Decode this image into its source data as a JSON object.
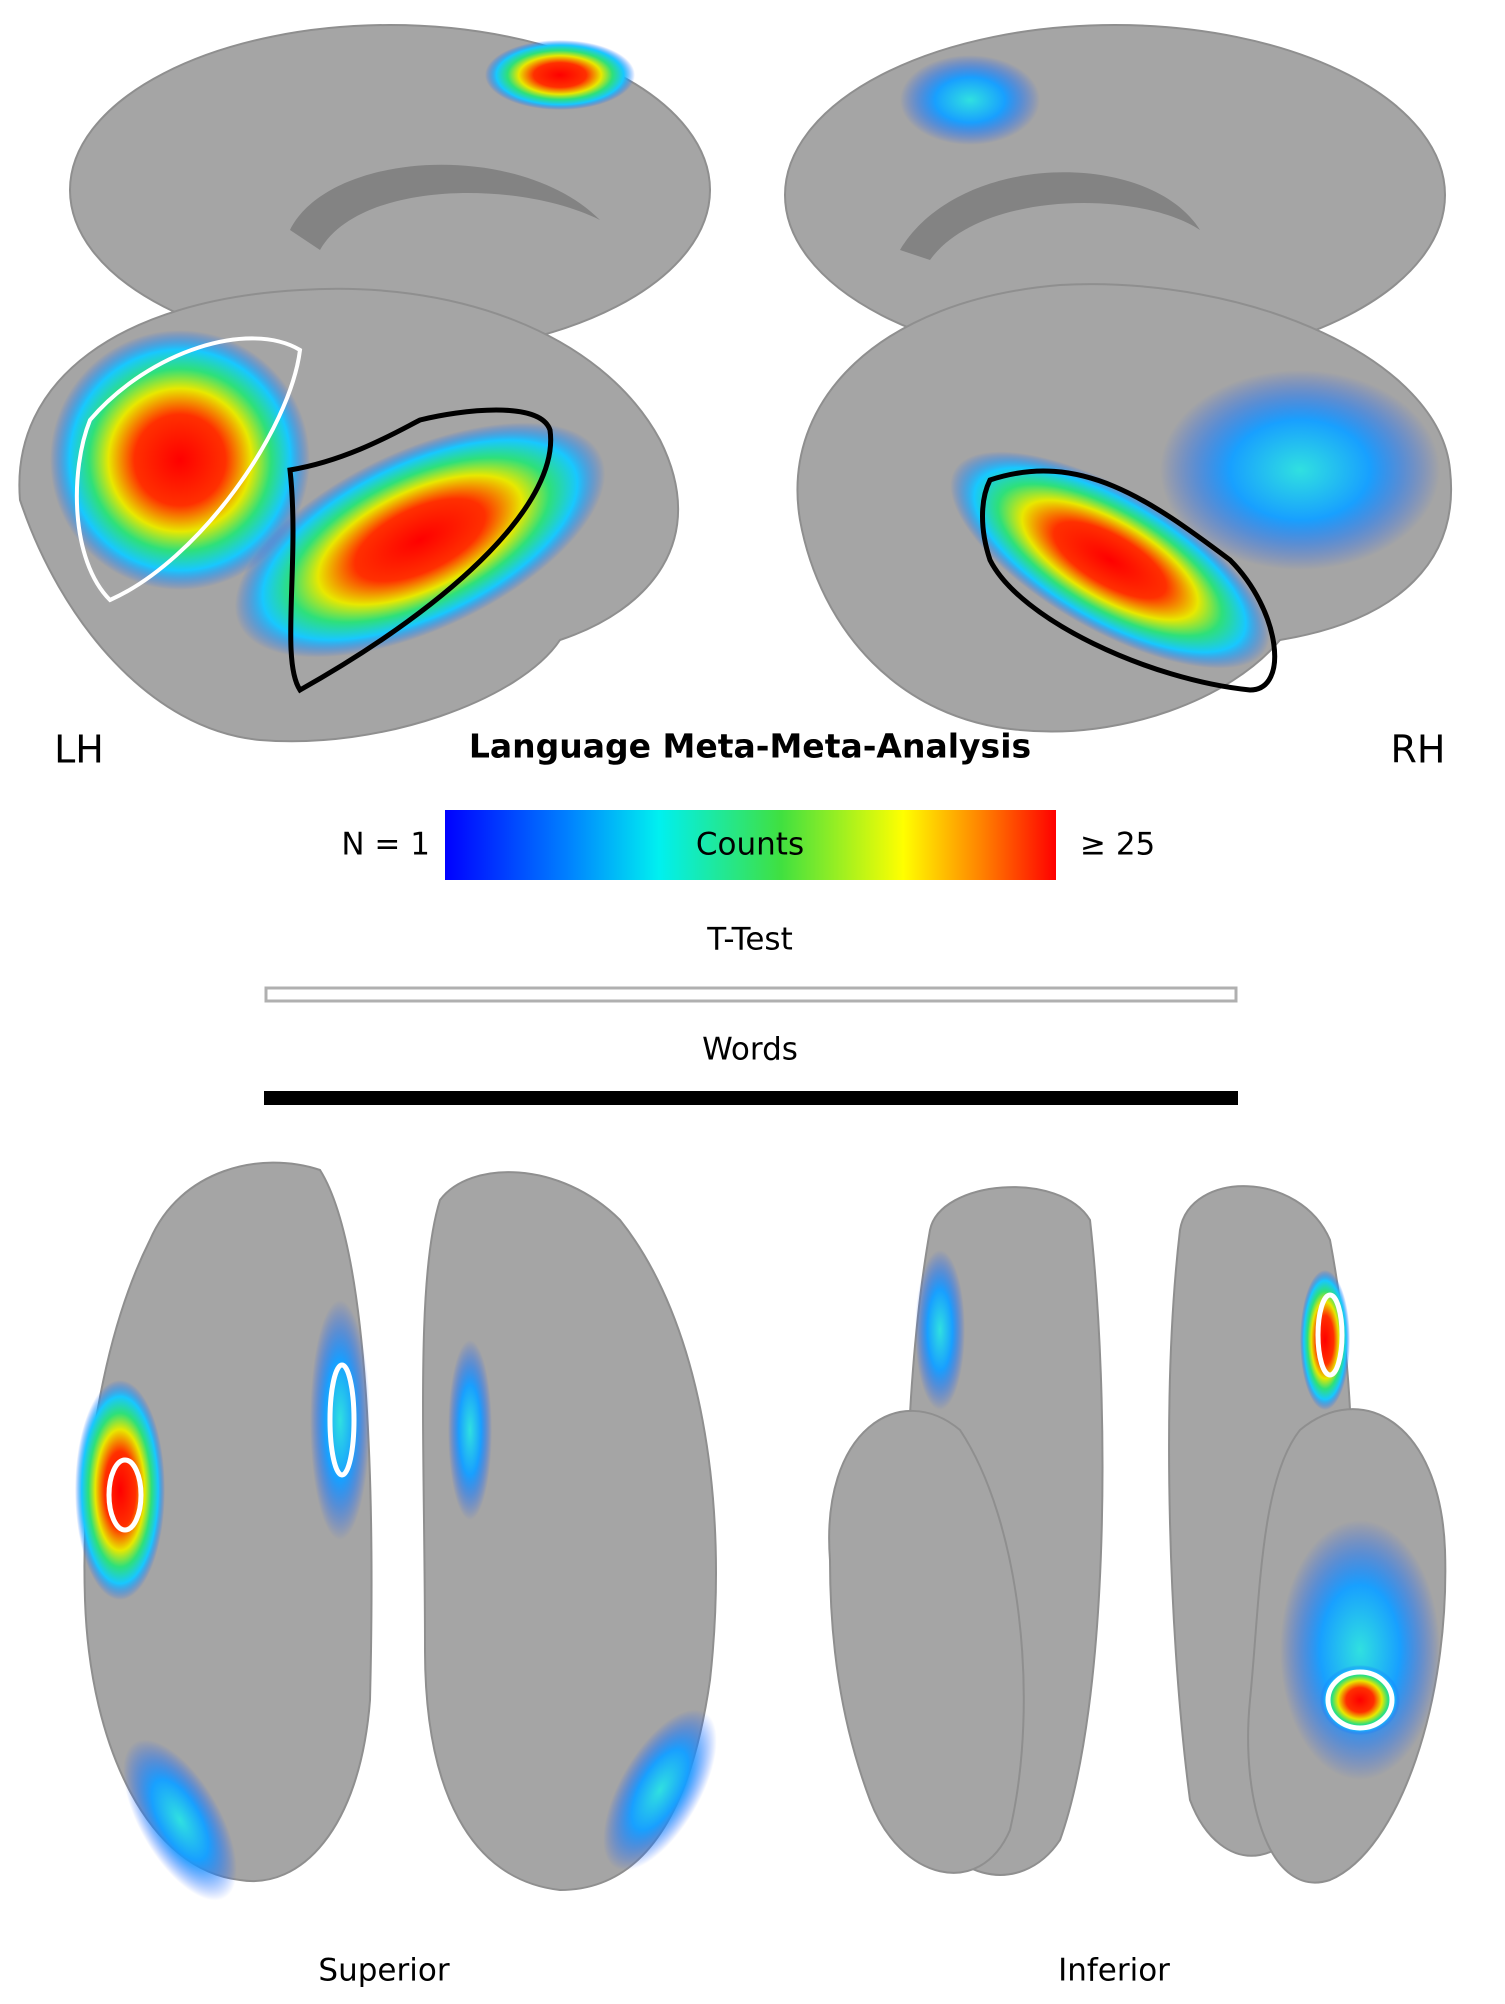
{
  "hemispheres": {
    "left": "LH",
    "right": "RH"
  },
  "title": "Language Meta-Meta-Analysis",
  "colorbar": {
    "min_label": "N = 1",
    "label": "Counts",
    "max_label": "≥ 25"
  },
  "legend": [
    {
      "label": "T-Test"
    },
    {
      "label": "Words"
    }
  ],
  "views": [
    "Superior",
    "Inferior"
  ]
}
